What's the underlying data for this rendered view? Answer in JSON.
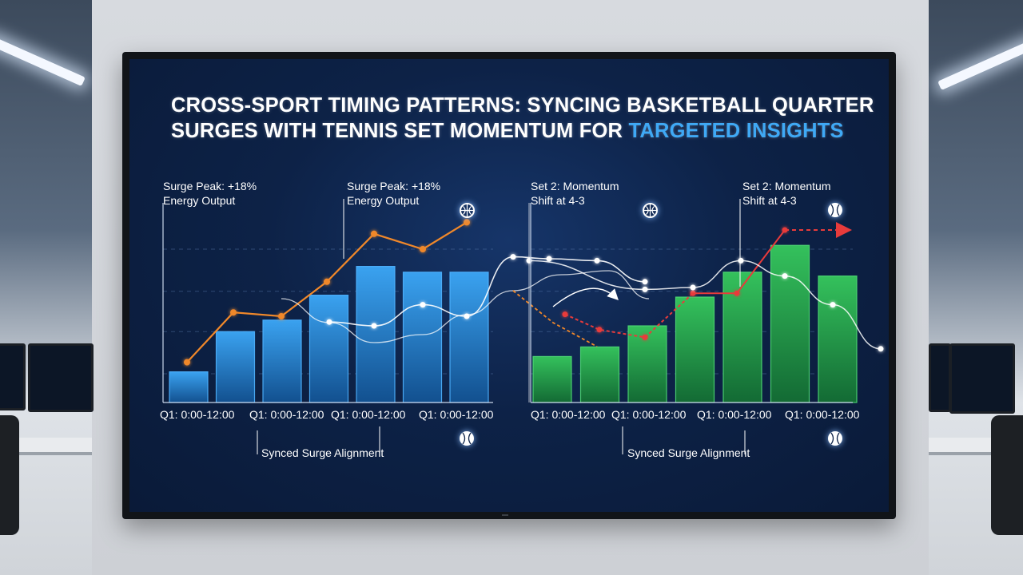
{
  "title_main": "CROSS-SPORT TIMING PATTERNS: SYNCING BASKETBALL QUARTER SURGES WITH TENNIS SET MOMENTUM FOR",
  "title_highlight": "TARGETED INSIGHTS",
  "colors": {
    "screen_bg": "#0d2247",
    "basketball_bar": "#2b8de0",
    "tennis_bar": "#27a24b",
    "orange_line": "#f0882a",
    "red_line": "#e83b3b",
    "white_line": "#ffffff",
    "highlight": "#3fa9f5"
  },
  "annotations": {
    "left_surge_1": "Surge Peak: +18%\nEnergy Output",
    "left_surge_2": "Surge Peak: +18%\nEnergy Output",
    "right_shift_1": "Set 2: Momentum\nShift at 4-3",
    "right_shift_2": "Set 2: Momentum\nShift at 4-3",
    "left_bottom": "Synced Surge Alignment",
    "right_bottom": "Synced Surge Alignment"
  },
  "icons": [
    "basketball-icon",
    "basketball-icon",
    "tennis-ball-icon",
    "tennis-ball-icon",
    "tennis-ball-icon"
  ],
  "chart_data": [
    {
      "type": "bar",
      "sport": "basketball",
      "ylim": [
        0,
        100
      ],
      "grid": "dashed horizontal",
      "x_tick_labels": [
        "Q1: 0:00-12:00",
        "Q1: 0:00-12:00",
        "Q1: 0:00-12:00",
        "Q1: 0:00-12:00"
      ],
      "values": [
        16,
        37,
        43,
        56,
        71,
        68,
        68
      ],
      "series": [
        {
          "values": [
            21,
            47,
            45,
            63,
            88,
            80,
            94
          ]
        },
        {
          "values": [
            42,
            40,
            51,
            45,
            76,
            75,
            74,
            63
          ]
        }
      ]
    },
    {
      "type": "bar",
      "sport": "tennis",
      "ylim": [
        0,
        100
      ],
      "grid": "dashed horizontal",
      "x_tick_labels": [
        "Q1: 0:00-12:00",
        "Q1: 0:00-12:00",
        "Q1: 0:00-12:00",
        "Q1: 0:00-12:00"
      ],
      "values": [
        24,
        29,
        40,
        55,
        68,
        82,
        66
      ],
      "series": [
        {
          "values": [
            46,
            38,
            34,
            57,
            57,
            90,
            90
          ]
        },
        {
          "values": [
            74,
            59,
            60,
            74,
            66,
            51,
            28,
            30,
            45
          ]
        }
      ]
    }
  ]
}
